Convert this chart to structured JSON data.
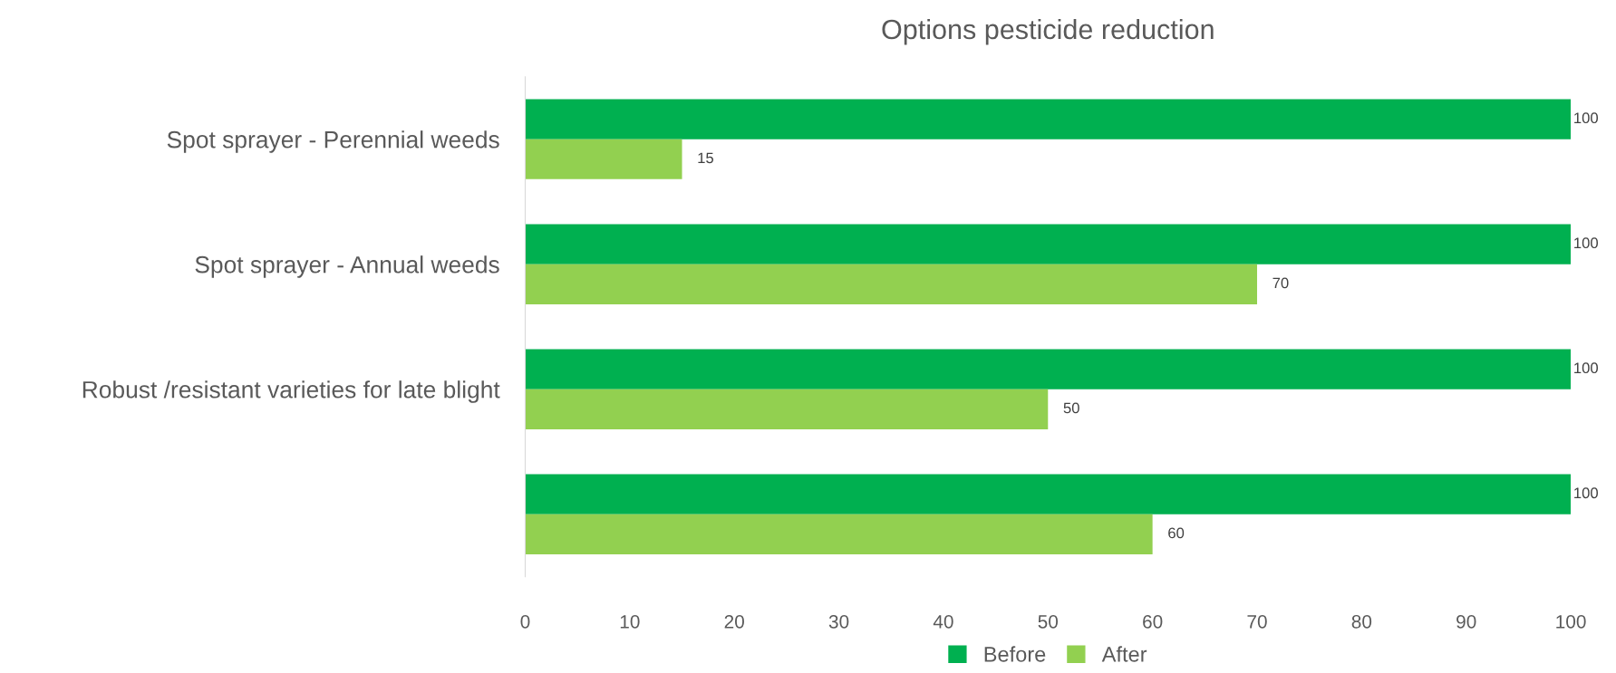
{
  "chart_data": {
    "type": "bar",
    "orientation": "horizontal",
    "title": "Options pesticide reduction",
    "categories": [
      "Spot sprayer - Perennial weeds",
      "Spot sprayer - Annual weeds",
      "Robust /resistant varieties for late blight",
      null
    ],
    "series": [
      {
        "name": "Before",
        "color": "#00b050",
        "values": [
          100,
          100,
          100,
          100
        ]
      },
      {
        "name": "After",
        "color": "#92d050",
        "values": [
          15,
          70,
          50,
          60
        ]
      }
    ],
    "xlim": [
      0,
      100
    ],
    "xticks": [
      0,
      10,
      20,
      30,
      40,
      50,
      60,
      70,
      80,
      90,
      100
    ],
    "data_labels": true,
    "grid": false,
    "legend": "bottom"
  }
}
